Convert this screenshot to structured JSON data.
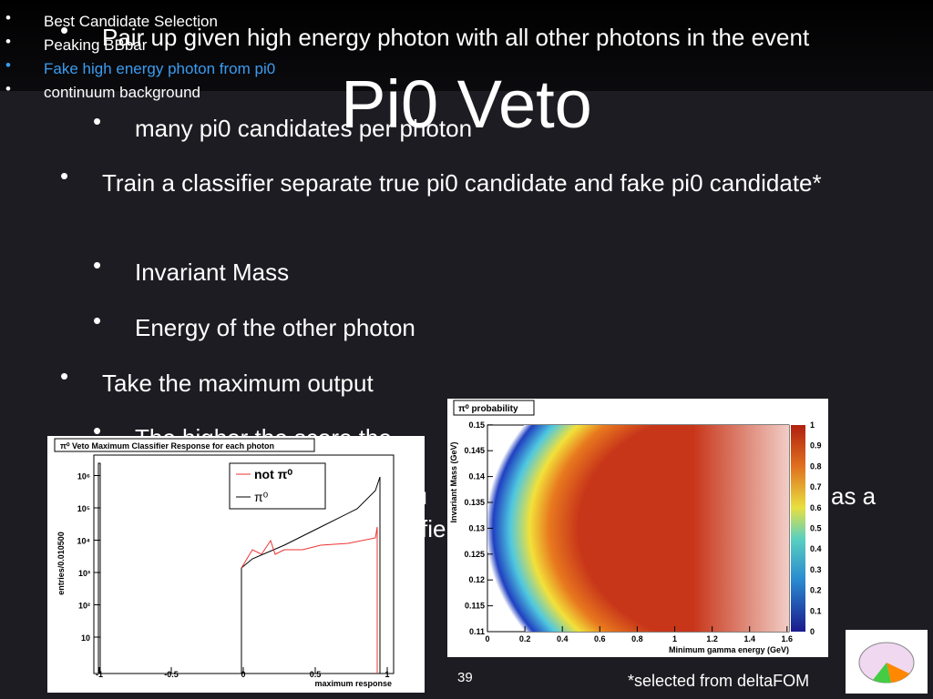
{
  "nav": {
    "items": [
      "Best Candidate Selection",
      "Peaking BBbar",
      "Fake high energy photon from pi0",
      "continuum background"
    ],
    "active": 2
  },
  "title": "Pi0 Veto",
  "bullets": [
    {
      "text": "Pair up given high energy photon with all other photons in the event",
      "level": 1
    },
    {
      "text": "many pi0 candidates per photon",
      "level": 2
    },
    {
      "text": "Train a classifier separate true pi0 candidate and fake pi0 candidate*",
      "level": 1
    },
    {
      "text": "Invariant Mass",
      "level": 2
    },
    {
      "text": "Energy of the other photon",
      "level": 2
    },
    {
      "text": "Take the maximum output",
      "level": 1
    },
    {
      "text": "The higher the score the",
      "level": 2
    }
  ],
  "fragments": [
    "nu",
    "as a",
    "fie"
  ],
  "left_plot": {
    "title": "π⁰ Veto Maximum Classifier Response for each photon",
    "ylabel": "entries/0.010500",
    "xlabel": "maximum response",
    "xticks": [
      "-1",
      "-0.5",
      "0",
      "0.5",
      "1"
    ],
    "yticks": [
      "10",
      "10²",
      "10³",
      "10⁴",
      "10⁵",
      "10⁶"
    ],
    "legend": [
      "not π⁰",
      "π⁰"
    ]
  },
  "right_plot": {
    "title": "π⁰ probability",
    "ylabel": "Invariant Mass (GeV)",
    "xlabel": "Minimum gamma energy (GeV)",
    "xticks": [
      "0",
      "0.2",
      "0.4",
      "0.6",
      "0.8",
      "1",
      "1.2",
      "1.4",
      "1.6"
    ],
    "yticks": [
      "0.11",
      "0.115",
      "0.12",
      "0.125",
      "0.13",
      "0.135",
      "0.14",
      "0.145",
      "0.15"
    ],
    "cticks": [
      "0",
      "0.1",
      "0.2",
      "0.3",
      "0.4",
      "0.5",
      "0.6",
      "0.7",
      "0.8",
      "0.9",
      "1"
    ]
  },
  "page_number": "39",
  "footnote": "*selected from deltaFOM"
}
